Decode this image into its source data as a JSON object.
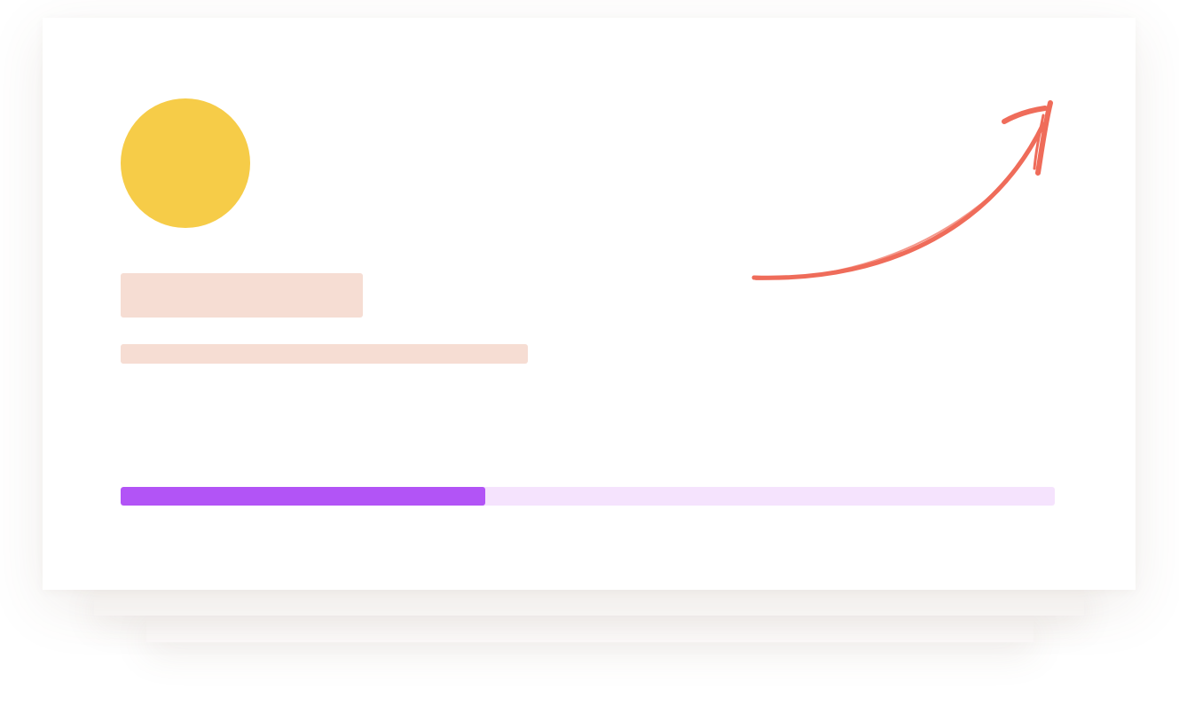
{
  "colors": {
    "avatar": "#f6cc48",
    "placeholder": "#f6ddd3",
    "progress_fill": "#b254f6",
    "progress_track": "#f5e3fd",
    "arrow": "#ef6c5a"
  },
  "icons": {
    "avatar": "avatar-circle",
    "arrow": "curved-arrow-up-right-icon"
  },
  "progress": {
    "fraction": 0.39
  }
}
